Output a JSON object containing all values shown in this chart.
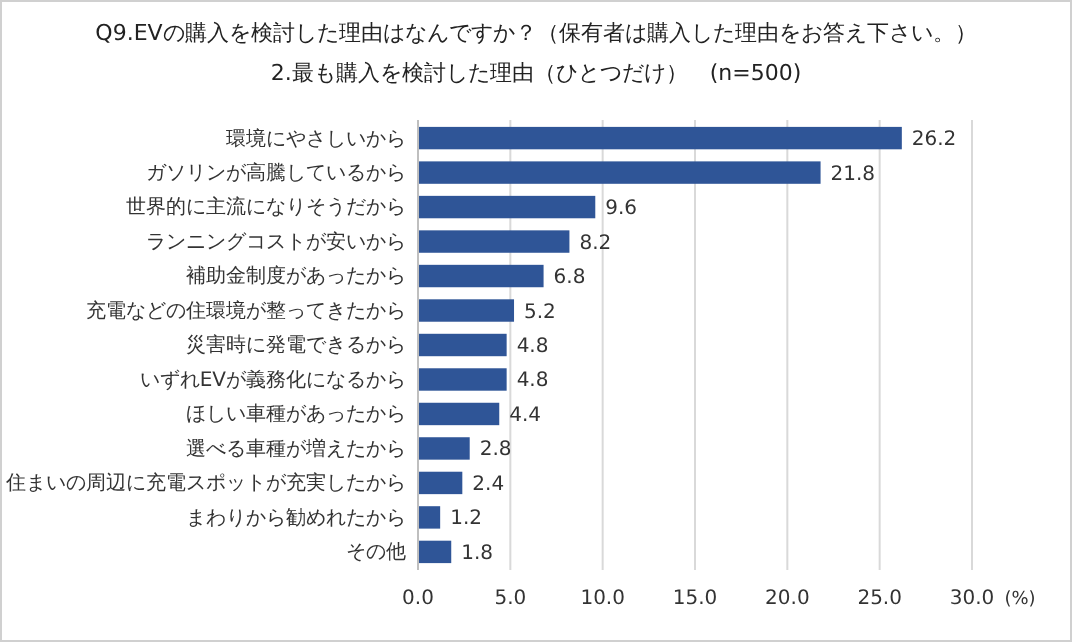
{
  "chart_data": {
    "type": "bar",
    "orientation": "horizontal",
    "title": "Q9.EVの購入を検討した理由はなんですか？（保有者は購入した理由をお答え下さい。）",
    "subtitle": "2.最も購入を検討した理由（ひとつだけ）　(n=500)",
    "xlabel": "(%)",
    "categories": [
      "環境にやさしいから",
      "ガソリンが高騰しているから",
      "世界的に主流になりそうだから",
      "ランニングコストが安いから",
      "補助金制度があったから",
      "充電などの住環境が整ってきたから",
      "災害時に発電できるから",
      "いずれEVが義務化になるから",
      "ほしい車種があったから",
      "選べる車種が増えたから",
      "住まいの周辺に充電スポットが充実したから",
      "まわりから勧めれたから",
      "その他"
    ],
    "values": [
      26.2,
      21.8,
      9.6,
      8.2,
      6.8,
      5.2,
      4.8,
      4.8,
      4.4,
      2.8,
      2.4,
      1.2,
      1.8
    ],
    "value_labels": [
      "26.2",
      "21.8",
      "9.6",
      "8.2",
      "6.8",
      "5.2",
      "4.8",
      "4.8",
      "4.4",
      "2.8",
      "2.4",
      "1.2",
      "1.8"
    ],
    "color": "#2f5597",
    "xlim": [
      0,
      30
    ],
    "xticks": [
      {
        "value": 0,
        "label": "0.0"
      },
      {
        "value": 5,
        "label": "5.0"
      },
      {
        "value": 10,
        "label": "10.0"
      },
      {
        "value": 15,
        "label": "15.0"
      },
      {
        "value": 20,
        "label": "20.0"
      },
      {
        "value": 25,
        "label": "25.0"
      },
      {
        "value": 30,
        "label": "30.0"
      }
    ],
    "grid": "x"
  }
}
